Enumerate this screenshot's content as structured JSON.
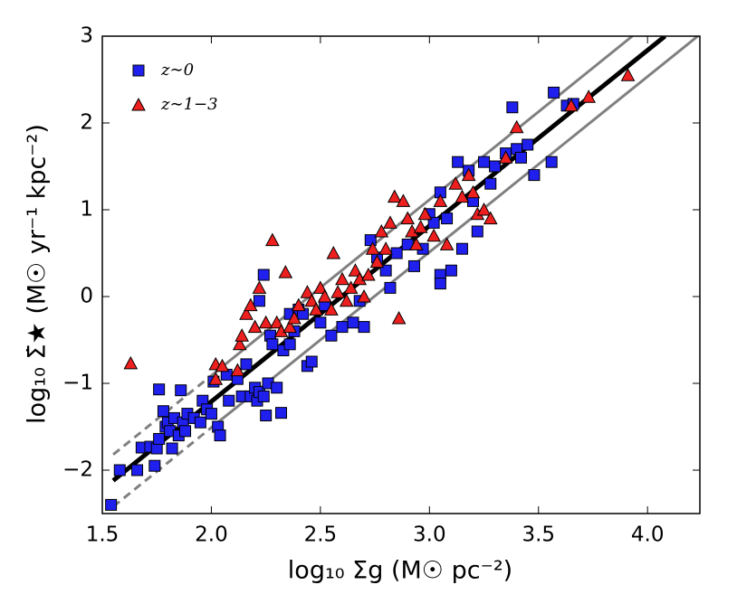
{
  "chart_data": {
    "type": "scatter",
    "xlabel": "log₁₀ Σg (M☉ pc⁻²)",
    "ylabel": "log₁₀ Σ̇★ (M☉ yr⁻¹ kpc⁻²)",
    "xlim": [
      1.5,
      4.24
    ],
    "ylim": [
      -2.5,
      3
    ],
    "xticks": [
      1.5,
      {
        "value": 2,
        "label": "2.0"
      },
      2.5,
      {
        "value": 3,
        "label": "3.0"
      },
      3.5,
      {
        "value": 4,
        "label": "4.0"
      }
    ],
    "yticks": [
      {
        "value": -2,
        "label": "−2"
      },
      {
        "value": -1,
        "label": "−1"
      },
      0,
      1,
      2,
      3
    ],
    "legend": "upper left",
    "series": [
      {
        "name": "z∼0",
        "marker": "square",
        "color": "#1f1fee",
        "x": [
          1.54,
          1.58,
          1.66,
          1.68,
          1.72,
          1.74,
          1.75,
          1.76,
          1.78,
          1.76,
          1.79,
          1.8,
          1.81,
          1.82,
          1.83,
          1.85,
          1.86,
          1.87,
          1.88,
          1.89,
          1.92,
          1.95,
          1.96,
          1.98,
          2.0,
          2.01,
          2.03,
          2.04,
          2.07,
          2.08,
          2.12,
          2.14,
          2.16,
          2.18,
          2.2,
          2.21,
          2.22,
          2.24,
          2.25,
          2.26,
          2.27,
          2.28,
          2.3,
          2.32,
          2.33,
          2.36,
          2.38,
          2.4,
          2.42,
          2.44,
          2.46,
          2.5,
          2.52,
          2.55,
          2.6,
          2.65,
          2.68,
          2.7,
          2.73,
          2.76,
          2.8,
          2.82,
          2.85,
          2.9,
          2.93,
          2.97,
          3.0,
          3.02,
          3.05,
          3.05,
          3.05,
          3.08,
          3.1,
          3.13,
          3.15,
          3.18,
          3.2,
          3.22,
          3.25,
          3.28,
          3.3,
          3.35,
          3.38,
          3.4,
          3.42,
          3.45,
          3.48,
          3.56,
          3.57,
          3.63,
          3.66,
          2.24,
          2.22,
          2.36
        ],
        "values": [
          -2.4,
          -2.0,
          -2.0,
          -1.74,
          -1.73,
          -1.95,
          -1.75,
          -1.64,
          -1.32,
          -1.07,
          -1.5,
          -1.45,
          -1.55,
          -1.75,
          -1.4,
          -1.6,
          -1.08,
          -1.45,
          -1.55,
          -1.35,
          -1.4,
          -1.45,
          -1.2,
          -1.3,
          -1.35,
          -0.98,
          -1.5,
          -1.6,
          -0.9,
          -1.2,
          -0.95,
          -1.15,
          -0.78,
          -1.15,
          -1.05,
          -1.2,
          -1.1,
          -1.15,
          -1.37,
          -1.0,
          -0.45,
          -0.55,
          -1.05,
          -1.34,
          -0.62,
          -0.2,
          -0.4,
          -0.15,
          -0.2,
          -0.8,
          -0.75,
          -0.3,
          -0.1,
          -0.45,
          -0.35,
          -0.3,
          -0.05,
          -0.35,
          0.65,
          0.45,
          0.3,
          0.1,
          0.5,
          0.6,
          0.35,
          0.55,
          0.95,
          0.85,
          1.2,
          0.25,
          0.15,
          0.9,
          0.3,
          1.55,
          0.55,
          1.45,
          1.1,
          0.75,
          1.55,
          1.3,
          1.5,
          1.65,
          2.18,
          1.7,
          1.6,
          1.75,
          1.4,
          1.55,
          2.35,
          2.2,
          2.22,
          0.25,
          -0.05,
          -0.55
        ]
      },
      {
        "name": "z∼1−3",
        "marker": "triangle",
        "color": "#ee1f1f",
        "x": [
          1.63,
          2.02,
          2.05,
          2.13,
          2.14,
          2.16,
          2.2,
          2.22,
          2.25,
          2.28,
          2.3,
          2.32,
          2.34,
          2.36,
          2.38,
          2.4,
          2.44,
          2.46,
          2.48,
          2.5,
          2.52,
          2.55,
          2.56,
          2.58,
          2.6,
          2.62,
          2.64,
          2.66,
          2.68,
          2.7,
          2.72,
          2.74,
          2.76,
          2.78,
          2.8,
          2.82,
          2.84,
          2.86,
          2.88,
          2.9,
          2.92,
          2.94,
          2.96,
          2.98,
          3.02,
          3.05,
          3.08,
          3.12,
          3.15,
          3.18,
          3.2,
          3.22,
          3.25,
          3.28,
          3.35,
          3.4,
          3.65,
          3.73,
          3.91,
          2.02,
          2.18,
          2.12
        ],
        "values": [
          -0.77,
          -0.78,
          -0.8,
          -0.55,
          -0.45,
          -0.2,
          -0.35,
          0.1,
          -0.3,
          0.65,
          -0.3,
          -0.4,
          0.28,
          -0.35,
          -0.25,
          -0.1,
          0.05,
          -0.05,
          -0.15,
          0.1,
          0.0,
          -0.15,
          0.5,
          0.05,
          0.2,
          -0.05,
          0.1,
          0.3,
          0.2,
          0.0,
          0.25,
          0.55,
          0.4,
          0.75,
          0.55,
          0.85,
          1.15,
          -0.25,
          1.1,
          0.9,
          0.75,
          0.6,
          0.8,
          0.95,
          0.7,
          1.1,
          0.6,
          1.3,
          1.15,
          1.4,
          1.2,
          0.95,
          1.0,
          0.9,
          1.6,
          1.95,
          2.2,
          2.3,
          2.55,
          -0.95,
          -0.1,
          -0.85
        ]
      }
    ],
    "lines": [
      {
        "color": "#808080",
        "style": "dashed",
        "x": [
          1.55,
          2.0
        ],
        "y": [
          -1.82,
          -0.91
        ]
      },
      {
        "color": "#808080",
        "style": "solid",
        "x": [
          2.0,
          3.93
        ],
        "y": [
          -0.91,
          3.0
        ]
      },
      {
        "color": "#808080",
        "style": "dashed",
        "x": [
          1.55,
          2.0
        ],
        "y": [
          -2.42,
          -1.51
        ]
      },
      {
        "color": "#808080",
        "style": "solid",
        "x": [
          2.0,
          4.24
        ],
        "y": [
          -1.51,
          3.02
        ]
      },
      {
        "color": "#000000",
        "style": "solid",
        "x": [
          1.55,
          4.08
        ],
        "y": [
          -2.12,
          3.0
        ]
      }
    ]
  }
}
